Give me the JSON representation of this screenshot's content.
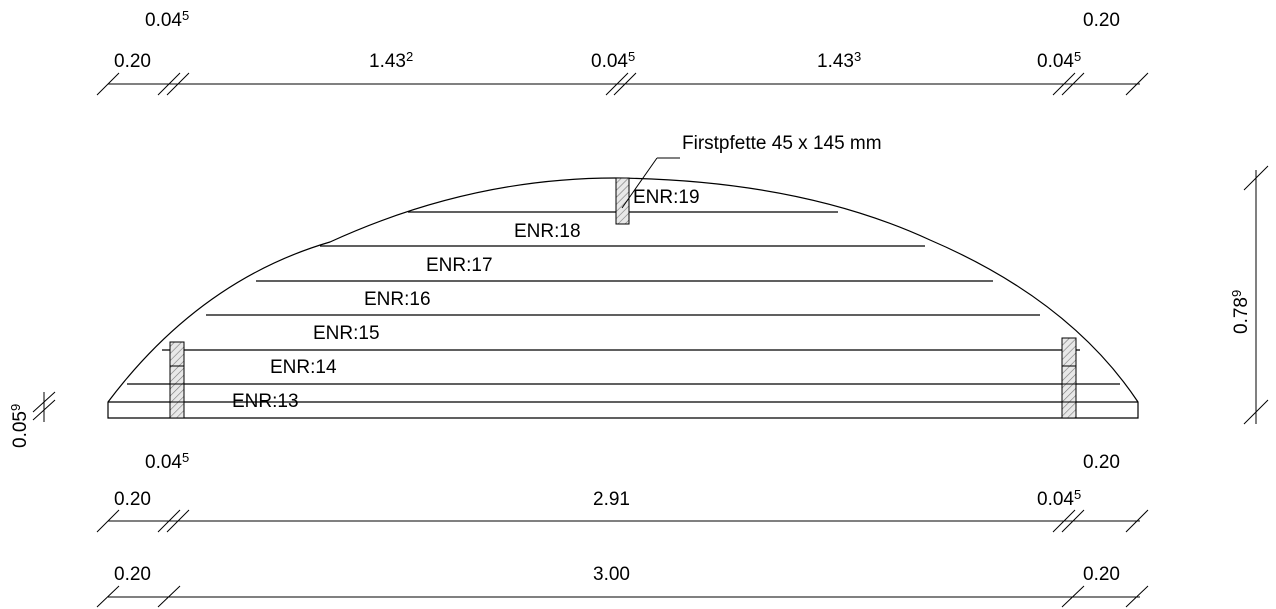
{
  "top_dimensions": {
    "row_upper": {
      "left": {
        "main": "0.04",
        "sup": "5"
      },
      "right": {
        "main": "0.20",
        "sup": ""
      }
    },
    "row_main": [
      {
        "main": "0.20",
        "sup": ""
      },
      {
        "main": "1.43",
        "sup": "2"
      },
      {
        "main": "0.04",
        "sup": "5"
      },
      {
        "main": "1.43",
        "sup": "3"
      },
      {
        "main": "0.04",
        "sup": "5"
      }
    ]
  },
  "bottom_dimensions": {
    "row_upper": {
      "left": {
        "main": "0.04",
        "sup": "5"
      },
      "right": {
        "main": "0.20",
        "sup": ""
      }
    },
    "row_mid": [
      {
        "main": "0.20",
        "sup": ""
      },
      {
        "main": "2.91",
        "sup": ""
      },
      {
        "main": "0.04",
        "sup": "5"
      }
    ],
    "row_total": [
      {
        "main": "0.20",
        "sup": ""
      },
      {
        "main": "3.00",
        "sup": ""
      },
      {
        "main": "0.20",
        "sup": ""
      }
    ]
  },
  "vertical_dimensions": {
    "left": {
      "main": "0.05",
      "sup": "9"
    },
    "right": {
      "main": "0.78",
      "sup": "9"
    }
  },
  "callout": "Firstpfette 45 x 145 mm",
  "boards": [
    "ENR:19",
    "ENR:18",
    "ENR:17",
    "ENR:16",
    "ENR:15",
    "ENR:14",
    "ENR:13"
  ]
}
